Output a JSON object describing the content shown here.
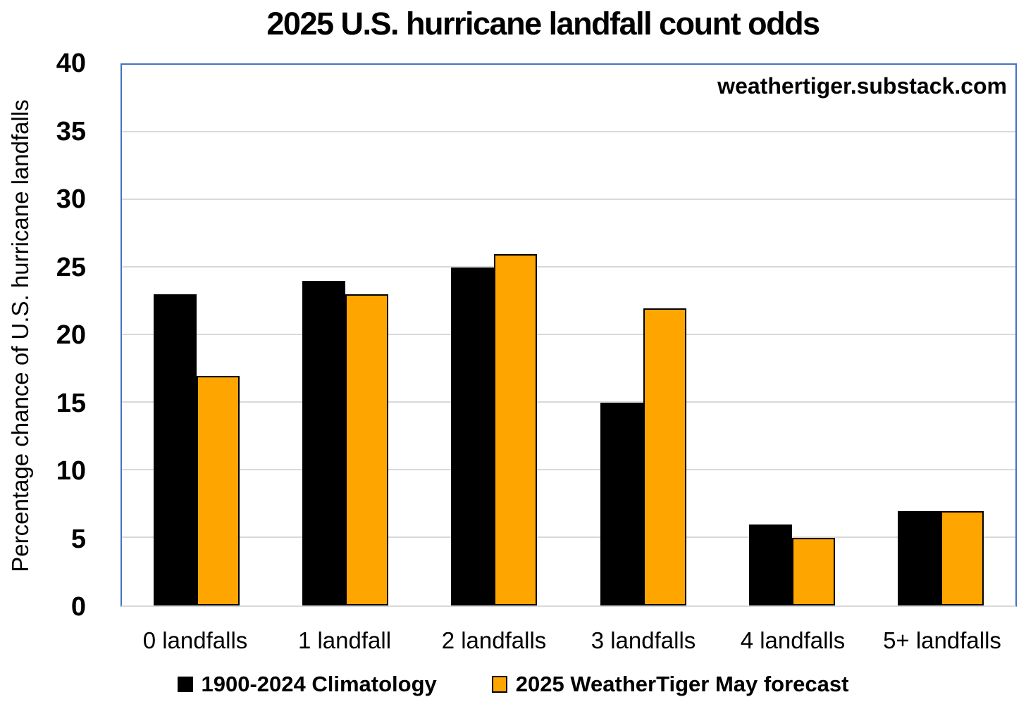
{
  "title": "2025 U.S. hurricane landfall count odds",
  "watermark": "weathertiger.substack.com",
  "chart_data": {
    "type": "bar",
    "title": "2025 U.S. hurricane landfall count odds",
    "categories": [
      "0 landfalls",
      "1 landfall",
      "2 landfalls",
      "3 landfalls",
      "4 landfalls",
      "5+ landfalls"
    ],
    "series": [
      {
        "name": "1900-2024 Climatology",
        "color": "#000000",
        "values": [
          23,
          24,
          25,
          15,
          6,
          7
        ]
      },
      {
        "name": "2025 WeatherTiger May forecast",
        "color": "#FFA500",
        "values": [
          17,
          23,
          26,
          22,
          5,
          7
        ]
      }
    ],
    "xlabel": "",
    "ylabel": "Percentage chance of U.S. hurricane landfalls",
    "ylim": [
      0,
      40
    ],
    "yticks": [
      0,
      5,
      10,
      15,
      20,
      25,
      30,
      35,
      40
    ],
    "grid": true,
    "legend_position": "bottom",
    "annotations": [
      "weathertiger.substack.com"
    ]
  },
  "colors": {
    "plot_border": "#4472C4",
    "gridline": "#D9D9D9",
    "bar_outline": "#000000",
    "series_climatology": "#000000",
    "series_forecast": "#FFA500",
    "text": "#000000",
    "background": "#FFFFFF"
  }
}
